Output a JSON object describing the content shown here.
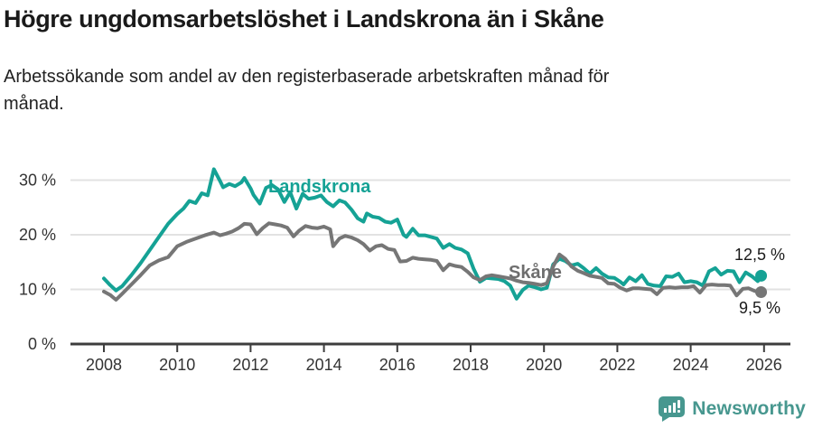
{
  "header": {
    "title": "Högre ungdomsarbetslöshet i Landskrona än i Skåne",
    "subtitle_lines": [
      "Arbetssökande som andel av den registerbaserade arbetskraften månad för",
      "månad."
    ]
  },
  "colors": {
    "landskrona": "#15a295",
    "skane": "#767676",
    "skane_label": "#6e6e6e",
    "grid": "#e2e2e2",
    "axis": "#3d3d3d",
    "tick_text": "#333333",
    "value_text": "#1a1a1a",
    "brand": "#47978f"
  },
  "chart_data": {
    "type": "line",
    "title": "Högre ungdomsarbetslöshet i Landskrona än i Skåne",
    "xlabel": "",
    "ylabel": "",
    "x_unit": "decimal year (monthly data)",
    "xlim": [
      2007.1,
      2026.7
    ],
    "ylim": [
      0,
      33
    ],
    "grid": "horizontal",
    "x_ticks": [
      2008,
      2010,
      2012,
      2014,
      2016,
      2018,
      2020,
      2022,
      2024,
      2026
    ],
    "y_ticks": [
      {
        "v": 0,
        "label": "0 %"
      },
      {
        "v": 10,
        "label": "10 %"
      },
      {
        "v": 20,
        "label": "20 %"
      },
      {
        "v": 30,
        "label": "30 %"
      }
    ],
    "series": [
      {
        "name": "Landskrona",
        "color": "#15a295",
        "end_label": "12,5 %",
        "end_value": 12.5,
        "points": [
          [
            2008,
            12
          ],
          [
            2008.17,
            10.8
          ],
          [
            2008.33,
            9.8
          ],
          [
            2008.5,
            10.6
          ],
          [
            2008.75,
            12.6
          ],
          [
            2009,
            14.8
          ],
          [
            2009.25,
            17.2
          ],
          [
            2009.5,
            19.6
          ],
          [
            2009.75,
            22
          ],
          [
            2010,
            23.8
          ],
          [
            2010.17,
            24.8
          ],
          [
            2010.33,
            26.2
          ],
          [
            2010.5,
            25.8
          ],
          [
            2010.67,
            27.6
          ],
          [
            2010.83,
            27.2
          ],
          [
            2011,
            32
          ],
          [
            2011.17,
            29.8
          ],
          [
            2011.25,
            28.7
          ],
          [
            2011.42,
            29.3
          ],
          [
            2011.58,
            28.9
          ],
          [
            2011.75,
            29.6
          ],
          [
            2011.83,
            30.4
          ],
          [
            2012,
            28.5
          ],
          [
            2012.08,
            27.3
          ],
          [
            2012.25,
            25.7
          ],
          [
            2012.42,
            28.6
          ],
          [
            2012.58,
            29.1
          ],
          [
            2012.75,
            28.3
          ],
          [
            2012.92,
            26
          ],
          [
            2013.08,
            27.8
          ],
          [
            2013.25,
            24.8
          ],
          [
            2013.42,
            27.5
          ],
          [
            2013.58,
            26.6
          ],
          [
            2013.75,
            26.8
          ],
          [
            2013.92,
            27.2
          ],
          [
            2014.08,
            26
          ],
          [
            2014.25,
            25.2
          ],
          [
            2014.42,
            26.3
          ],
          [
            2014.58,
            25.9
          ],
          [
            2014.75,
            24.6
          ],
          [
            2014.92,
            23
          ],
          [
            2015.08,
            22.4
          ],
          [
            2015.17,
            23.9
          ],
          [
            2015.33,
            23.3
          ],
          [
            2015.5,
            23.1
          ],
          [
            2015.67,
            22.4
          ],
          [
            2015.83,
            22.2
          ],
          [
            2016,
            22.8
          ],
          [
            2016.17,
            20
          ],
          [
            2016.25,
            19.6
          ],
          [
            2016.42,
            21.1
          ],
          [
            2016.58,
            19.9
          ],
          [
            2016.75,
            19.9
          ],
          [
            2016.92,
            19.6
          ],
          [
            2017.08,
            19.3
          ],
          [
            2017.25,
            17.6
          ],
          [
            2017.42,
            18.3
          ],
          [
            2017.58,
            17.6
          ],
          [
            2017.75,
            17.3
          ],
          [
            2017.92,
            16.6
          ],
          [
            2018.08,
            13.8
          ],
          [
            2018.25,
            11.4
          ],
          [
            2018.42,
            12.1
          ],
          [
            2018.58,
            12
          ],
          [
            2018.75,
            11.9
          ],
          [
            2018.92,
            11.5
          ],
          [
            2019.08,
            10.7
          ],
          [
            2019.25,
            8.3
          ],
          [
            2019.42,
            9.9
          ],
          [
            2019.58,
            10.7
          ],
          [
            2019.75,
            10.4
          ],
          [
            2019.92,
            10
          ],
          [
            2020.08,
            10.3
          ],
          [
            2020.25,
            14.6
          ],
          [
            2020.42,
            15.6
          ],
          [
            2020.58,
            15.2
          ],
          [
            2020.75,
            14.4
          ],
          [
            2020.92,
            14.7
          ],
          [
            2021.08,
            13.9
          ],
          [
            2021.25,
            12.9
          ],
          [
            2021.42,
            13.9
          ],
          [
            2021.58,
            12.9
          ],
          [
            2021.75,
            12.2
          ],
          [
            2021.92,
            12.1
          ],
          [
            2022.08,
            11.4
          ],
          [
            2022.17,
            10.9
          ],
          [
            2022.33,
            12.2
          ],
          [
            2022.5,
            11.5
          ],
          [
            2022.67,
            12.6
          ],
          [
            2022.83,
            11
          ],
          [
            2023,
            10.7
          ],
          [
            2023.17,
            10.6
          ],
          [
            2023.33,
            12.4
          ],
          [
            2023.5,
            12.3
          ],
          [
            2023.67,
            12.9
          ],
          [
            2023.83,
            11.3
          ],
          [
            2024,
            11.5
          ],
          [
            2024.17,
            11.3
          ],
          [
            2024.33,
            10.7
          ],
          [
            2024.5,
            13.3
          ],
          [
            2024.67,
            13.9
          ],
          [
            2024.83,
            12.7
          ],
          [
            2025,
            13.4
          ],
          [
            2025.17,
            13.3
          ],
          [
            2025.33,
            11.3
          ],
          [
            2025.5,
            13.1
          ],
          [
            2025.67,
            12.4
          ],
          [
            2025.83,
            11.5
          ],
          [
            2025.92,
            12.5
          ]
        ]
      },
      {
        "name": "Skåne",
        "color": "#767676",
        "end_label": "9,5 %",
        "end_value": 9.5,
        "points": [
          [
            2008,
            9.6
          ],
          [
            2008.17,
            9
          ],
          [
            2008.33,
            8.1
          ],
          [
            2008.5,
            9.2
          ],
          [
            2008.75,
            10.9
          ],
          [
            2009,
            12.6
          ],
          [
            2009.25,
            14.4
          ],
          [
            2009.5,
            15.3
          ],
          [
            2009.75,
            15.9
          ],
          [
            2010,
            17.9
          ],
          [
            2010.25,
            18.7
          ],
          [
            2010.5,
            19.3
          ],
          [
            2010.75,
            19.9
          ],
          [
            2011,
            20.4
          ],
          [
            2011.17,
            19.9
          ],
          [
            2011.33,
            20.2
          ],
          [
            2011.5,
            20.6
          ],
          [
            2011.67,
            21.2
          ],
          [
            2011.83,
            22
          ],
          [
            2012,
            21.9
          ],
          [
            2012.17,
            20.1
          ],
          [
            2012.33,
            21.2
          ],
          [
            2012.5,
            22.1
          ],
          [
            2012.67,
            21.9
          ],
          [
            2012.83,
            21.7
          ],
          [
            2013,
            21.3
          ],
          [
            2013.17,
            19.7
          ],
          [
            2013.33,
            20.8
          ],
          [
            2013.5,
            21.6
          ],
          [
            2013.67,
            21.3
          ],
          [
            2013.83,
            21.2
          ],
          [
            2014,
            21.5
          ],
          [
            2014.17,
            21
          ],
          [
            2014.25,
            17.9
          ],
          [
            2014.42,
            19.3
          ],
          [
            2014.58,
            19.8
          ],
          [
            2014.75,
            19.5
          ],
          [
            2014.92,
            19
          ],
          [
            2015.08,
            18.3
          ],
          [
            2015.25,
            17.1
          ],
          [
            2015.42,
            17.9
          ],
          [
            2015.58,
            18.1
          ],
          [
            2015.75,
            17.4
          ],
          [
            2015.92,
            17.2
          ],
          [
            2016.08,
            15.1
          ],
          [
            2016.25,
            15.2
          ],
          [
            2016.42,
            15.8
          ],
          [
            2016.58,
            15.6
          ],
          [
            2016.75,
            15.5
          ],
          [
            2016.92,
            15.4
          ],
          [
            2017.08,
            15.2
          ],
          [
            2017.25,
            13.5
          ],
          [
            2017.42,
            14.6
          ],
          [
            2017.58,
            14.3
          ],
          [
            2017.75,
            14.1
          ],
          [
            2017.92,
            13.2
          ],
          [
            2018.08,
            12.2
          ],
          [
            2018.25,
            11.7
          ],
          [
            2018.42,
            12.4
          ],
          [
            2018.58,
            12.6
          ],
          [
            2018.75,
            12.4
          ],
          [
            2018.92,
            12.2
          ],
          [
            2019.08,
            12
          ],
          [
            2019.25,
            11.6
          ],
          [
            2019.42,
            11.3
          ],
          [
            2019.58,
            11.2
          ],
          [
            2019.75,
            11
          ],
          [
            2019.92,
            10.8
          ],
          [
            2020.08,
            11.1
          ],
          [
            2020.25,
            14.2
          ],
          [
            2020.42,
            16.4
          ],
          [
            2020.58,
            15.6
          ],
          [
            2020.75,
            14.2
          ],
          [
            2020.92,
            13.4
          ],
          [
            2021.08,
            13
          ],
          [
            2021.25,
            12.5
          ],
          [
            2021.42,
            12.3
          ],
          [
            2021.58,
            12.1
          ],
          [
            2021.75,
            11.1
          ],
          [
            2021.92,
            11
          ],
          [
            2022.08,
            10.3
          ],
          [
            2022.25,
            9.8
          ],
          [
            2022.42,
            10.2
          ],
          [
            2022.58,
            10.2
          ],
          [
            2022.75,
            10.1
          ],
          [
            2022.92,
            10
          ],
          [
            2023.08,
            9.1
          ],
          [
            2023.25,
            10.3
          ],
          [
            2023.42,
            10.4
          ],
          [
            2023.58,
            10.3
          ],
          [
            2023.75,
            10.4
          ],
          [
            2023.92,
            10.4
          ],
          [
            2024.08,
            10.6
          ],
          [
            2024.25,
            9.4
          ],
          [
            2024.42,
            10.8
          ],
          [
            2024.58,
            10.9
          ],
          [
            2024.75,
            10.8
          ],
          [
            2024.92,
            10.8
          ],
          [
            2025.08,
            10.7
          ],
          [
            2025.25,
            8.9
          ],
          [
            2025.42,
            10.1
          ],
          [
            2025.58,
            10.2
          ],
          [
            2025.75,
            9.7
          ],
          [
            2025.92,
            9.5
          ]
        ]
      }
    ]
  },
  "footer": {
    "brand": "Newsworthy"
  }
}
